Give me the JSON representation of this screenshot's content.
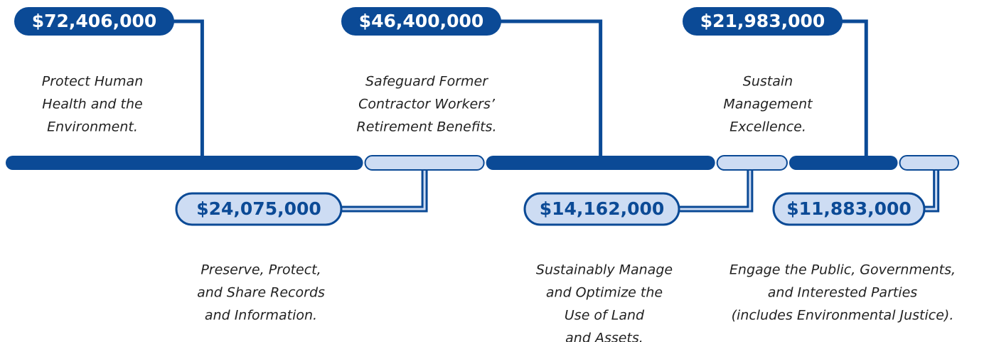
{
  "chart_data": {
    "type": "bar",
    "categories": [
      [
        "Protect Human",
        "Health and the",
        "Environment."
      ],
      [
        "Preserve, Protect,",
        "and Share Records",
        "and Information."
      ],
      [
        "Safeguard Former",
        "Contractor Workers’",
        "Retirement Benefits."
      ],
      [
        "Sustainably Manage",
        "and Optimize the",
        "Use of Land",
        "and Assets."
      ],
      [
        "Sustain",
        "Management",
        "Excellence."
      ],
      [
        "Engage the Public, Governments,",
        "and Interested Parties",
        "(includes Environmental Justice)."
      ]
    ],
    "values": [
      72406000,
      24075000,
      46400000,
      14162000,
      21983000,
      11883000
    ],
    "value_labels": [
      "$72,406,000",
      "$24,075,000",
      "$46,400,000",
      "$14,162,000",
      "$21,983,000",
      "$11,883,000"
    ],
    "colors": [
      "#0b4a96",
      "#cddcf3"
    ]
  }
}
